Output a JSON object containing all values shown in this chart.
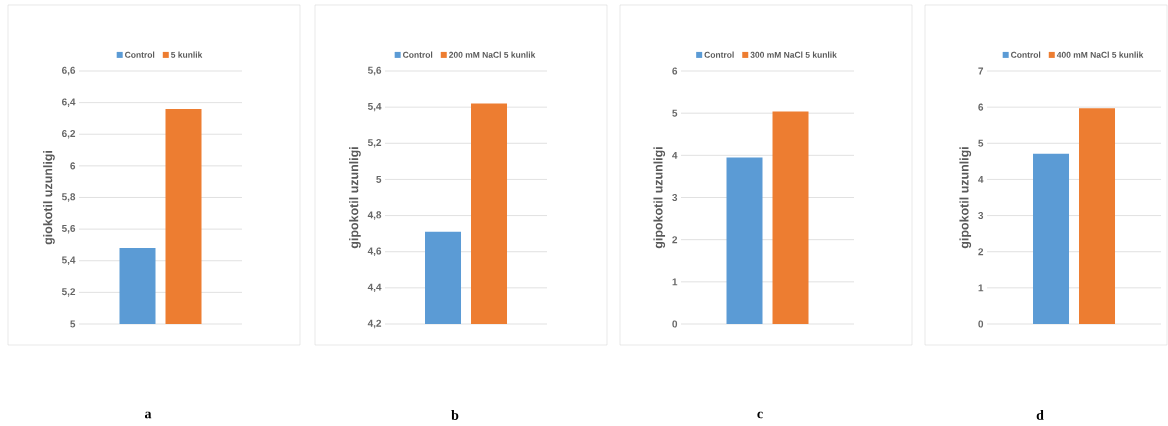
{
  "chart_data": [
    {
      "type": "bar",
      "categories": [
        null
      ],
      "ylabel": "giokotil uzunligi",
      "ylim": [
        5,
        6.6
      ],
      "yticks": [
        5,
        {
          "value": 5.2,
          "label": "5,2"
        },
        {
          "value": 5.4,
          "label": "5,4"
        },
        {
          "value": 5.6,
          "label": "5,6"
        },
        {
          "value": 5.8,
          "label": "5,8"
        },
        6,
        {
          "value": 6.2,
          "label": "6,2"
        },
        {
          "value": 6.4,
          "label": "6,4"
        },
        {
          "value": 6.6,
          "label": "6,6"
        }
      ],
      "grid": "y",
      "legend": "top",
      "tick_labels": "y",
      "annotations": [
        "a"
      ],
      "series": [
        {
          "name": "Control",
          "color": "#5b9bd5",
          "values": [
            5.48
          ]
        },
        {
          "name": "5 kunlik",
          "color": "#ed7d31",
          "values": [
            6.36
          ]
        }
      ]
    },
    {
      "type": "bar",
      "categories": [
        null
      ],
      "ylabel": "gipokotil uzunligi",
      "ylim": [
        4.2,
        5.6
      ],
      "yticks": [
        {
          "value": 4.2,
          "label": "4,2"
        },
        {
          "value": 4.4,
          "label": "4,4"
        },
        {
          "value": 4.6,
          "label": "4,6"
        },
        {
          "value": 4.8,
          "label": "4,8"
        },
        5,
        {
          "value": 5.2,
          "label": "5,2"
        },
        {
          "value": 5.4,
          "label": "5,4"
        },
        {
          "value": 5.6,
          "label": "5,6"
        }
      ],
      "grid": "y",
      "legend": "top",
      "tick_labels": "y",
      "annotations": [
        "b"
      ],
      "series": [
        {
          "name": "Control",
          "color": "#5b9bd5",
          "values": [
            4.71
          ]
        },
        {
          "name": "200 mM NaCl 5 kunlik",
          "color": "#ed7d31",
          "values": [
            5.42
          ]
        }
      ]
    },
    {
      "type": "bar",
      "categories": [
        null
      ],
      "ylabel": "gipokotil uzunligi",
      "ylim": [
        0,
        6
      ],
      "yticks": [
        0,
        1,
        2,
        3,
        4,
        5,
        6
      ],
      "grid": "y",
      "legend": "top",
      "tick_labels": "y",
      "annotations": [
        "c"
      ],
      "series": [
        {
          "name": "Control",
          "color": "#5b9bd5",
          "values": [
            3.95
          ]
        },
        {
          "name": "300 mM NaCl 5 kunlik",
          "color": "#ed7d31",
          "values": [
            5.04
          ]
        }
      ]
    },
    {
      "type": "bar",
      "categories": [
        null
      ],
      "ylabel": "gipokotil uzunligi",
      "ylim": [
        0,
        7
      ],
      "yticks": [
        0,
        1,
        2,
        3,
        4,
        5,
        6,
        7
      ],
      "grid": "y",
      "legend": "top",
      "tick_labels": "y",
      "annotations": [
        "d"
      ],
      "series": [
        {
          "name": "Control",
          "color": "#5b9bd5",
          "values": [
            4.71
          ]
        },
        {
          "name": "400 mM NaCl 5 kunlik",
          "color": "#ed7d31",
          "values": [
            5.97
          ]
        }
      ]
    }
  ]
}
